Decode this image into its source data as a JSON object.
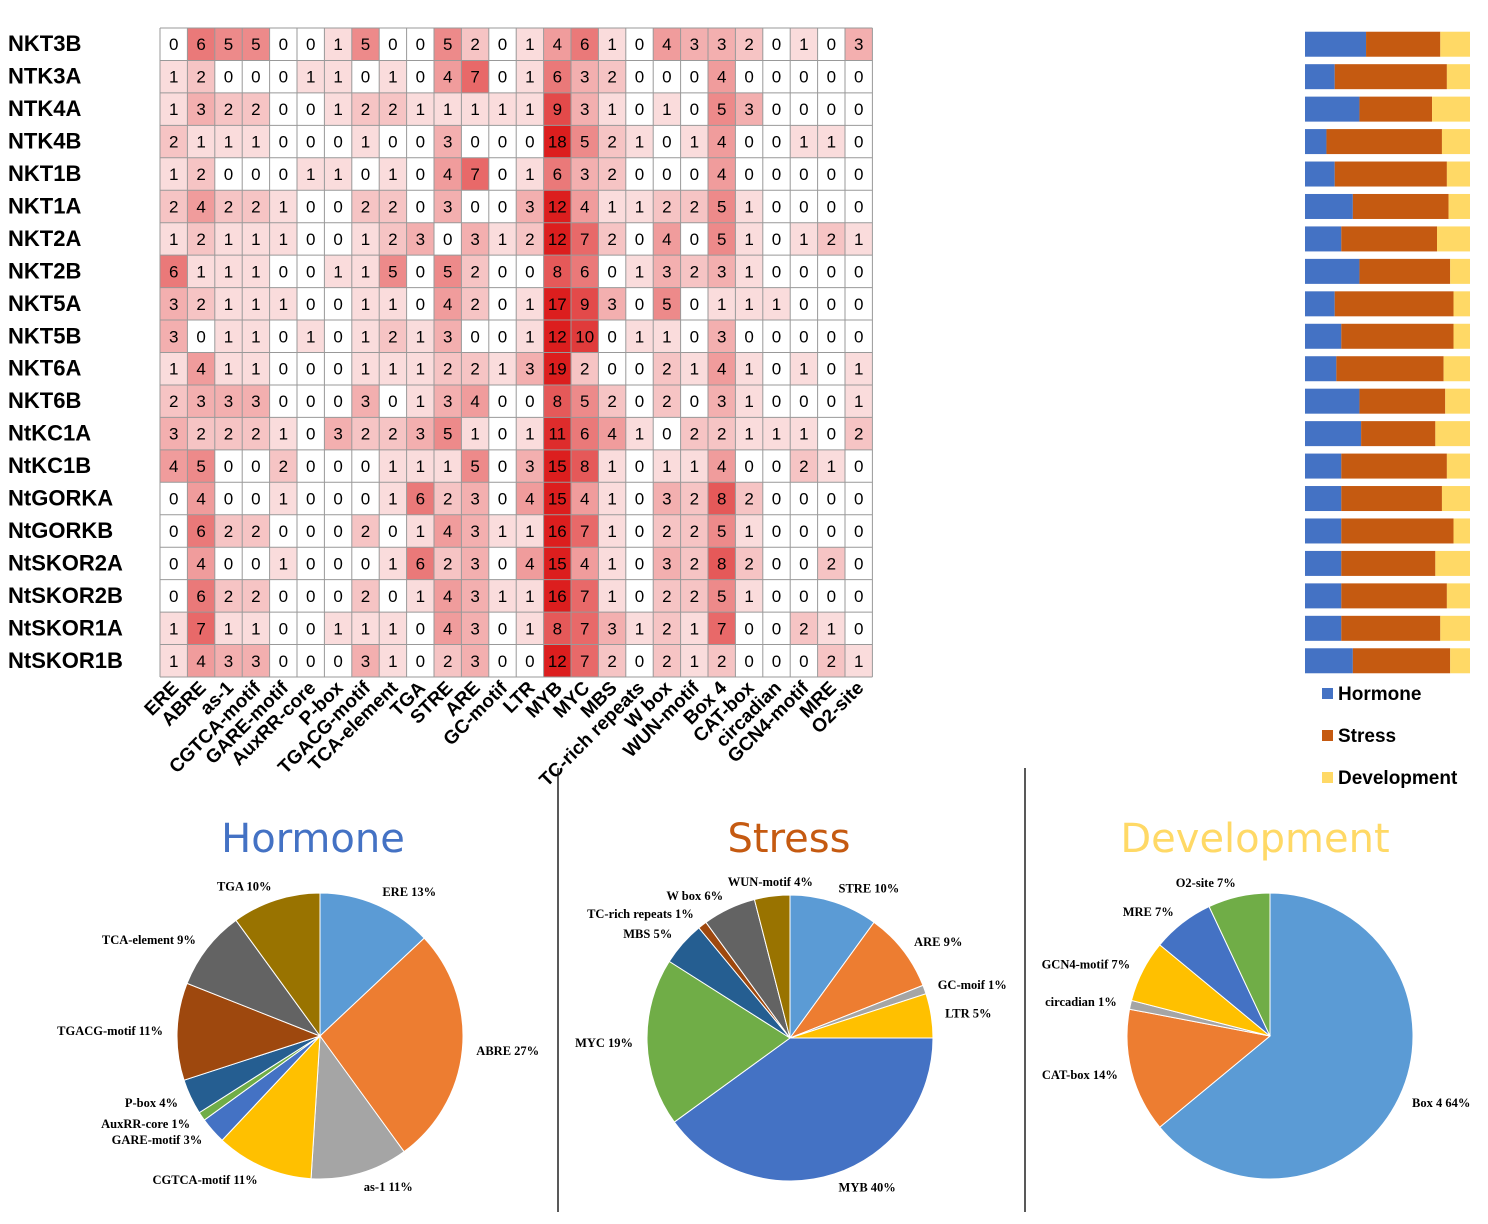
{
  "colors": {
    "hormone": "#4472c4",
    "stress": "#c55a11",
    "development": "#ffd966",
    "heat_low": "#ffffff",
    "heat_high": "#dc1e1e"
  },
  "chart_data": [
    {
      "type": "heatmap",
      "title": "",
      "rows": [
        "NKT3B",
        "NTK3A",
        "NTK4A",
        "NTK4B",
        "NKT1B",
        "NKT1A",
        "NKT2A",
        "NKT2B",
        "NKT5A",
        "NKT5B",
        "NKT6A",
        "NKT6B",
        "NtKC1A",
        "NtKC1B",
        "NtGORKA",
        "NtGORKB",
        "NtSKOR2A",
        "NtSKOR2B",
        "NtSKOR1A",
        "NtSKOR1B"
      ],
      "columns": [
        "ERE",
        "ABRE",
        "as-1",
        "CGTCA-motif",
        "GARE-motif",
        "AuxRR-core",
        "P-box",
        "TGACG-motif",
        "TCA-element",
        "TGA",
        "STRE",
        "ARE",
        "GC-motif",
        "LTR",
        "MYB",
        "MYC",
        "MBS",
        "TC-rich repeats",
        "W box",
        "WUN-motif",
        "Box 4",
        "CAT-box",
        "circadian",
        "GCN4-motif",
        "MRE",
        "O2-site"
      ],
      "values": [
        [
          0,
          6,
          5,
          5,
          0,
          0,
          1,
          5,
          0,
          0,
          5,
          2,
          0,
          1,
          4,
          6,
          1,
          0,
          4,
          3,
          3,
          2,
          0,
          1,
          0,
          3
        ],
        [
          1,
          2,
          0,
          0,
          0,
          1,
          1,
          0,
          1,
          0,
          4,
          7,
          0,
          1,
          6,
          3,
          2,
          0,
          0,
          0,
          4,
          0,
          0,
          0,
          0,
          0
        ],
        [
          1,
          3,
          2,
          2,
          0,
          0,
          1,
          2,
          2,
          1,
          1,
          1,
          1,
          1,
          9,
          3,
          1,
          0,
          1,
          0,
          5,
          3,
          0,
          0,
          0,
          0
        ],
        [
          2,
          1,
          1,
          1,
          0,
          0,
          0,
          1,
          0,
          0,
          3,
          0,
          0,
          0,
          18,
          5,
          2,
          1,
          0,
          1,
          4,
          0,
          0,
          1,
          1,
          0
        ],
        [
          1,
          2,
          0,
          0,
          0,
          1,
          1,
          0,
          1,
          0,
          4,
          7,
          0,
          1,
          6,
          3,
          2,
          0,
          0,
          0,
          4,
          0,
          0,
          0,
          0,
          0
        ],
        [
          2,
          4,
          2,
          2,
          1,
          0,
          0,
          2,
          2,
          0,
          3,
          0,
          0,
          3,
          12,
          4,
          1,
          1,
          2,
          2,
          5,
          1,
          0,
          0,
          0,
          0
        ],
        [
          1,
          2,
          1,
          1,
          1,
          0,
          0,
          1,
          2,
          3,
          0,
          3,
          1,
          2,
          12,
          7,
          2,
          0,
          4,
          0,
          5,
          1,
          0,
          1,
          2,
          1
        ],
        [
          6,
          1,
          1,
          1,
          0,
          0,
          1,
          1,
          5,
          0,
          5,
          2,
          0,
          0,
          8,
          6,
          0,
          1,
          3,
          2,
          3,
          1,
          0,
          0,
          0,
          0
        ],
        [
          3,
          2,
          1,
          1,
          1,
          0,
          0,
          1,
          1,
          0,
          4,
          2,
          0,
          1,
          17,
          9,
          3,
          0,
          5,
          0,
          1,
          1,
          1,
          0,
          0,
          0
        ],
        [
          3,
          0,
          1,
          1,
          0,
          1,
          0,
          1,
          2,
          1,
          3,
          0,
          0,
          1,
          12,
          10,
          0,
          1,
          1,
          0,
          3,
          0,
          0,
          0,
          0,
          0
        ],
        [
          1,
          4,
          1,
          1,
          0,
          0,
          0,
          1,
          1,
          1,
          2,
          2,
          1,
          3,
          19,
          2,
          0,
          0,
          2,
          1,
          4,
          1,
          0,
          1,
          0,
          1
        ],
        [
          2,
          3,
          3,
          3,
          0,
          0,
          0,
          3,
          0,
          1,
          3,
          4,
          0,
          0,
          8,
          5,
          2,
          0,
          2,
          0,
          3,
          1,
          0,
          0,
          0,
          1
        ],
        [
          3,
          2,
          2,
          2,
          1,
          0,
          3,
          2,
          2,
          3,
          5,
          1,
          0,
          1,
          11,
          6,
          4,
          1,
          0,
          2,
          2,
          1,
          1,
          1,
          0,
          2
        ],
        [
          4,
          5,
          0,
          0,
          2,
          0,
          0,
          0,
          1,
          1,
          1,
          5,
          0,
          3,
          15,
          8,
          1,
          0,
          1,
          1,
          4,
          0,
          0,
          2,
          1,
          0
        ],
        [
          0,
          4,
          0,
          0,
          1,
          0,
          0,
          0,
          1,
          6,
          2,
          3,
          0,
          4,
          15,
          4,
          1,
          0,
          3,
          2,
          8,
          2,
          0,
          0,
          0,
          0
        ],
        [
          0,
          6,
          2,
          2,
          0,
          0,
          0,
          2,
          0,
          1,
          4,
          3,
          1,
          1,
          16,
          7,
          1,
          0,
          2,
          2,
          5,
          1,
          0,
          0,
          0,
          0
        ],
        [
          0,
          4,
          0,
          0,
          1,
          0,
          0,
          0,
          1,
          6,
          2,
          3,
          0,
          4,
          15,
          4,
          1,
          0,
          3,
          2,
          8,
          2,
          0,
          0,
          2,
          0
        ],
        [
          0,
          6,
          2,
          2,
          0,
          0,
          0,
          2,
          0,
          1,
          4,
          3,
          1,
          1,
          16,
          7,
          1,
          0,
          2,
          2,
          5,
          1,
          0,
          0,
          0,
          0
        ],
        [
          1,
          7,
          1,
          1,
          0,
          0,
          1,
          1,
          1,
          0,
          4,
          3,
          0,
          1,
          8,
          7,
          3,
          1,
          2,
          1,
          7,
          0,
          0,
          2,
          1,
          0
        ],
        [
          1,
          4,
          3,
          3,
          0,
          0,
          0,
          3,
          1,
          0,
          2,
          3,
          0,
          0,
          12,
          7,
          2,
          0,
          2,
          1,
          2,
          0,
          0,
          0,
          2,
          1
        ]
      ]
    },
    {
      "type": "bar",
      "stacked": true,
      "orientation": "horizontal",
      "categories": [
        "NKT3B",
        "NTK3A",
        "NTK4A",
        "NTK4B",
        "NKT1B",
        "NKT1A",
        "NKT2A",
        "NKT2B",
        "NKT5A",
        "NKT5B",
        "NKT6A",
        "NKT6B",
        "NtKC1A",
        "NtKC1B",
        "NtGORKA",
        "NtGORKB",
        "NtSKOR2A",
        "NtSKOR2B",
        "NtSKOR1A",
        "NtSKOR1B"
      ],
      "series": [
        {
          "name": "Hormone",
          "values": [
            37,
            18,
            33,
            13,
            18,
            29,
            22,
            33,
            18,
            22,
            19,
            33,
            34,
            22,
            22,
            22,
            22,
            22,
            22,
            29
          ]
        },
        {
          "name": "Stress",
          "values": [
            45,
            68,
            44,
            70,
            68,
            58,
            58,
            55,
            72,
            68,
            65,
            52,
            45,
            64,
            61,
            68,
            57,
            64,
            60,
            59
          ]
        },
        {
          "name": "Development",
          "values": [
            18,
            14,
            23,
            17,
            14,
            13,
            20,
            12,
            10,
            10,
            16,
            15,
            21,
            14,
            17,
            10,
            21,
            14,
            18,
            12
          ]
        }
      ],
      "xlim": [
        0,
        100
      ],
      "legend": [
        "Hormone",
        "Stress",
        "Development"
      ]
    },
    {
      "type": "pie",
      "title": "Hormone",
      "slices": [
        {
          "label": "ERE  13%",
          "value": 13,
          "color": "#5b9bd5"
        },
        {
          "label": "ABRE 27%",
          "value": 27,
          "color": "#ed7d31"
        },
        {
          "label": "as-1 11%",
          "value": 11,
          "color": "#a5a5a5"
        },
        {
          "label": "CGTCA-motif  11%",
          "value": 11,
          "color": "#ffc000"
        },
        {
          "label": "GARE-motif 3%",
          "value": 3,
          "color": "#4472c4"
        },
        {
          "label": "AuxRR-core 1%",
          "value": 1,
          "color": "#70ad47"
        },
        {
          "label": "P-box 4%",
          "value": 4,
          "color": "#255e91"
        },
        {
          "label": "TGACG-motif 11%",
          "value": 11,
          "color": "#9e480e"
        },
        {
          "label": "TCA-element 9%",
          "value": 9,
          "color": "#636363"
        },
        {
          "label": "TGA 10%",
          "value": 10,
          "color": "#997300"
        }
      ]
    },
    {
      "type": "pie",
      "title": "Stress",
      "slices": [
        {
          "label": "STRE 10%",
          "value": 10,
          "color": "#5b9bd5"
        },
        {
          "label": "ARE 9%",
          "value": 9,
          "color": "#ed7d31"
        },
        {
          "label": "GC-moif 1%",
          "value": 1,
          "color": "#a5a5a5"
        },
        {
          "label": "LTR 5%",
          "value": 5,
          "color": "#ffc000"
        },
        {
          "label": "MYB 40%",
          "value": 40,
          "color": "#4472c4"
        },
        {
          "label": "MYC 19%",
          "value": 19,
          "color": "#70ad47"
        },
        {
          "label": "MBS 5%",
          "value": 5,
          "color": "#255e91"
        },
        {
          "label": "TC-rich repeats 1%",
          "value": 1,
          "color": "#9e480e"
        },
        {
          "label": "W box  6%",
          "value": 6,
          "color": "#636363"
        },
        {
          "label": "WUN-motif 4%",
          "value": 4,
          "color": "#997300"
        }
      ]
    },
    {
      "type": "pie",
      "title": "Development",
      "slices": [
        {
          "label": "Box 4 64%",
          "value": 64,
          "color": "#5b9bd5"
        },
        {
          "label": "CAT-box 14%",
          "value": 14,
          "color": "#ed7d31"
        },
        {
          "label": "circadian 1%",
          "value": 1,
          "color": "#a5a5a5"
        },
        {
          "label": "GCN4-motif 7%",
          "value": 7,
          "color": "#ffc000"
        },
        {
          "label": "MRE 7%",
          "value": 7,
          "color": "#4472c4"
        },
        {
          "label": "O2-site 7%",
          "value": 7,
          "color": "#70ad47"
        }
      ]
    }
  ]
}
